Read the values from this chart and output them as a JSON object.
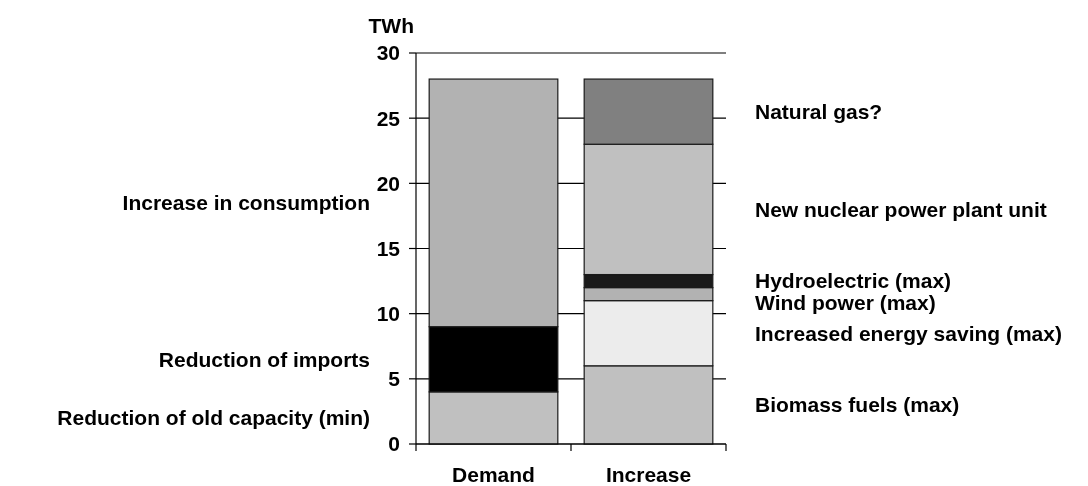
{
  "chart_data": {
    "type": "bar",
    "ylabel": "TWh",
    "categories": [
      "Demand",
      "Increase"
    ],
    "stacked": true,
    "ylim": [
      0,
      30
    ],
    "yticks": [
      0,
      5,
      10,
      15,
      20,
      25,
      30
    ],
    "grid": "y",
    "series": [
      {
        "name": "Reduction of old capacity (min)",
        "color": "#c0c0c0",
        "values": [
          4,
          null
        ]
      },
      {
        "name": "Reduction of imports",
        "color": "#000000",
        "values": [
          5,
          null
        ]
      },
      {
        "name": "Increase in consumption",
        "color": "#b2b2b2",
        "values": [
          19,
          null
        ]
      },
      {
        "name": "Biomass fuels (max)",
        "color": "#c0c0c0",
        "values": [
          null,
          6
        ]
      },
      {
        "name": "Increased energy saving (max)",
        "color": "#ececec",
        "values": [
          null,
          5
        ]
      },
      {
        "name": "Wind power (max)",
        "color": "#b2b2b2",
        "values": [
          null,
          1
        ]
      },
      {
        "name": "Hydroelectric (max)",
        "color": "#1a1a1a",
        "values": [
          null,
          1
        ]
      },
      {
        "name": "New nuclear power plant unit",
        "color": "#c0c0c0",
        "values": [
          null,
          10
        ]
      },
      {
        "name": "Natural gas?",
        "color": "#808080",
        "values": [
          null,
          5
        ]
      }
    ]
  }
}
